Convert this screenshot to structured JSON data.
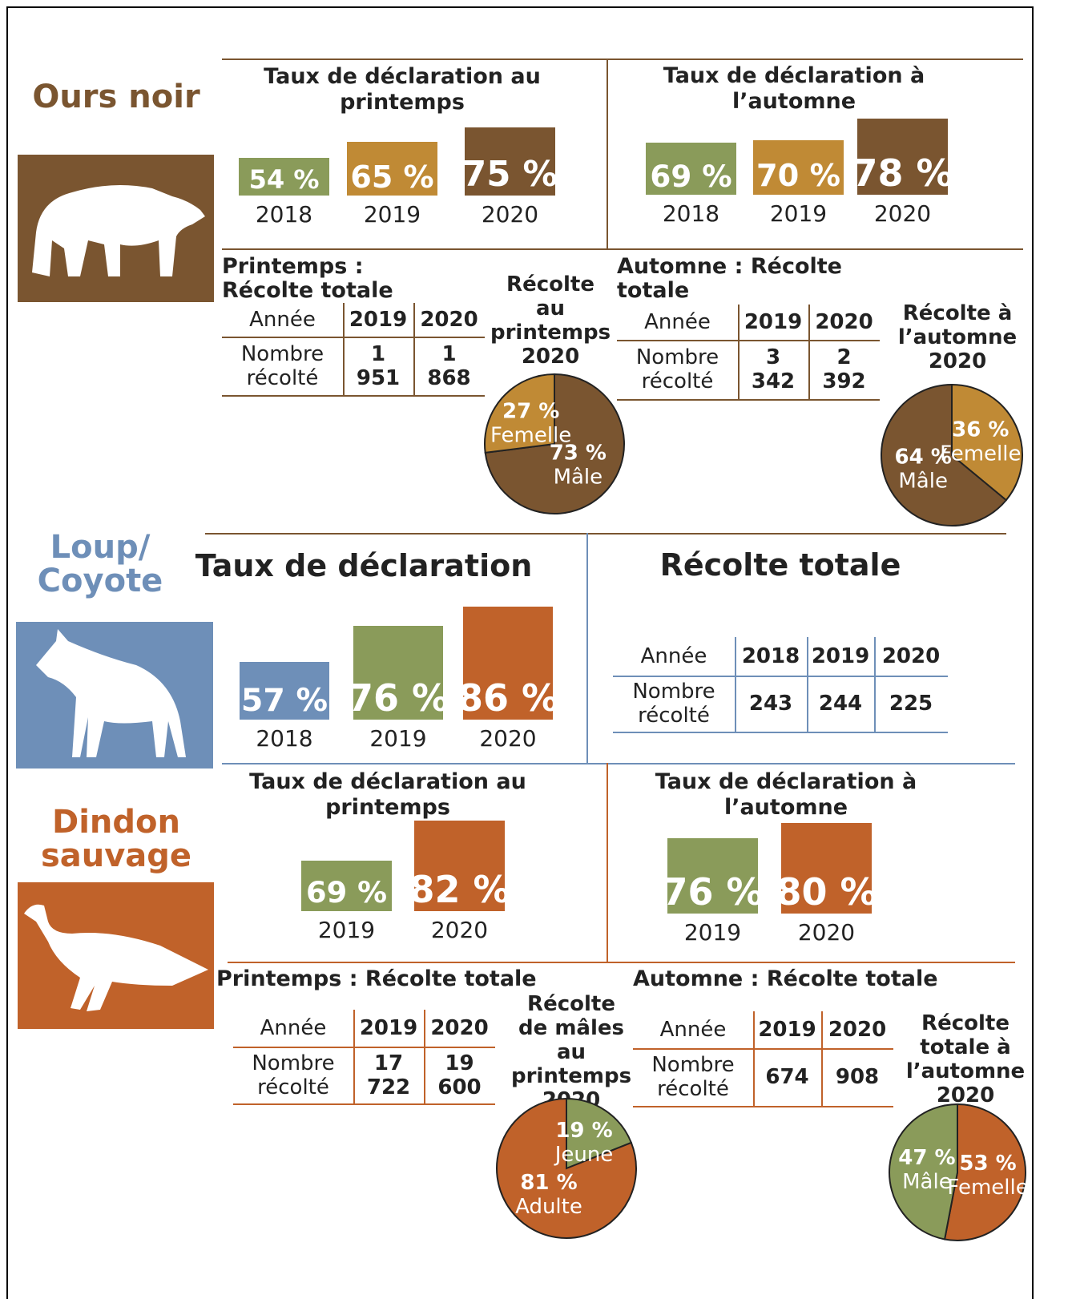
{
  "sections": [
    {
      "title": "Ours noir",
      "color": "#7a5530",
      "rates": [
        {
          "title": "Taux de déclaration au printemps",
          "years": [
            "2018",
            "2019",
            "2020"
          ],
          "values": [
            54,
            65,
            75
          ],
          "value_labels": [
            "54 %",
            "65 %",
            "75 %"
          ],
          "colors": [
            "#8a9b5a",
            "#c08a35",
            "#7a5530"
          ]
        },
        {
          "title": "Taux de déclaration à l’automne",
          "years": [
            "2018",
            "2019",
            "2020"
          ],
          "values": [
            69,
            70,
            78
          ],
          "value_labels": [
            "69 %",
            "70 %",
            "78 %"
          ],
          "colors": [
            "#8a9b5a",
            "#c08a35",
            "#7a5530"
          ]
        }
      ],
      "tables": [
        {
          "title": "Printemps : Récolte totale",
          "header": [
            "Année",
            "2019",
            "2020"
          ],
          "row": [
            "Nombre récolté",
            "1 951",
            "1 868"
          ]
        },
        {
          "title": "Automne : Récolte totale",
          "header": [
            "Année",
            "2019",
            "2020"
          ],
          "row": [
            "Nombre récolté",
            "3 342",
            "2 392"
          ]
        }
      ],
      "pies": [
        {
          "title": "Récolte au printemps 2020",
          "slices": [
            {
              "label": "Mâle",
              "value": 73,
              "value_label": "73 %",
              "color": "#7a5530"
            },
            {
              "label": "Femelle",
              "value": 27,
              "value_label": "27 %",
              "color": "#c08a35"
            }
          ]
        },
        {
          "title": "Récolte à l’automne 2020",
          "slices": [
            {
              "label": "Femelle",
              "value": 36,
              "value_label": "36 %",
              "color": "#c08a35"
            },
            {
              "label": "Mâle",
              "value": 64,
              "value_label": "64 %",
              "color": "#7a5530"
            }
          ]
        }
      ]
    },
    {
      "title": "Loup/ Coyote",
      "color": "#6e8fb8",
      "rates": [
        {
          "title": "Taux de déclaration",
          "years": [
            "2018",
            "2019",
            "2020"
          ],
          "values": [
            57,
            76,
            86
          ],
          "value_labels": [
            "57 %",
            "76 %",
            "86 %"
          ],
          "colors": [
            "#6e8fb8",
            "#8a9b5a",
            "#c0622a"
          ]
        }
      ],
      "tables": [
        {
          "title": "Récolte totale",
          "header": [
            "Année",
            "2018",
            "2019",
            "2020"
          ],
          "row": [
            "Nombre récolté",
            "243",
            "244",
            "225"
          ]
        }
      ],
      "pies": []
    },
    {
      "title": "Dindon sauvage",
      "color": "#c0622a",
      "rates": [
        {
          "title": "Taux de déclaration au printemps",
          "years": [
            "2019",
            "2020"
          ],
          "values": [
            69,
            82
          ],
          "value_labels": [
            "69 %",
            "82 %"
          ],
          "colors": [
            "#8a9b5a",
            "#c0622a"
          ]
        },
        {
          "title": "Taux de déclaration à l’automne",
          "years": [
            "2019",
            "2020"
          ],
          "values": [
            76,
            80
          ],
          "value_labels": [
            "76 %",
            "80 %"
          ],
          "colors": [
            "#8a9b5a",
            "#c0622a"
          ]
        }
      ],
      "tables": [
        {
          "title": "Printemps : Récolte totale",
          "header": [
            "Année",
            "2019",
            "2020"
          ],
          "row": [
            "Nombre récolté",
            "17 722",
            "19 600"
          ]
        },
        {
          "title": "Automne : Récolte totale",
          "header": [
            "Année",
            "2019",
            "2020"
          ],
          "row": [
            "Nombre récolté",
            "674",
            "908"
          ]
        }
      ],
      "pies": [
        {
          "title": "Récolte de mâles au printemps 2020",
          "slices": [
            {
              "label": "Jeune",
              "value": 19,
              "value_label": "19 %",
              "color": "#8a9b5a"
            },
            {
              "label": "Adulte",
              "value": 81,
              "value_label": "81 %",
              "color": "#c0622a"
            }
          ]
        },
        {
          "title": "Récolte totale à l’automne 2020",
          "slices": [
            {
              "label": "Femelle",
              "value": 53,
              "value_label": "53 %",
              "color": "#c0622a"
            },
            {
              "label": "Mâle",
              "value": 47,
              "value_label": "47 %",
              "color": "#8a9b5a"
            }
          ]
        }
      ]
    }
  ]
}
